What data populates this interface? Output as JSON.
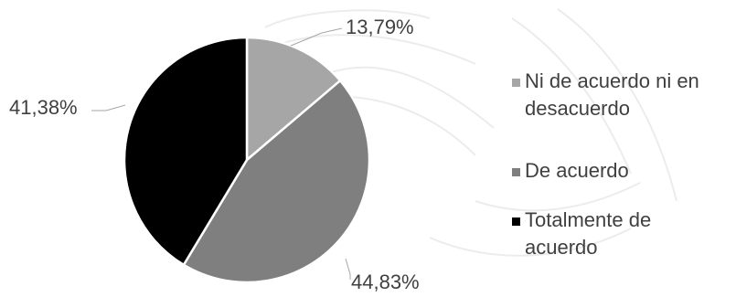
{
  "chart_data": {
    "type": "pie",
    "start_angle_deg": 0,
    "direction": "clockwise",
    "slices": [
      {
        "label": "Ni de acuerdo ni en desacuerdo",
        "value": 13.79,
        "display": "13,79%",
        "color": "#a6a6a6"
      },
      {
        "label": "De acuerdo",
        "value": 44.83,
        "display": "44,83%",
        "color": "#7f7f7f"
      },
      {
        "label": "Totalmente de acuerdo",
        "value": 41.38,
        "display": "41,38%",
        "color": "#000000"
      }
    ],
    "legend": {
      "position": "right",
      "entries": [
        {
          "lines": [
            "Ni de acuerdo ni en",
            "desacuerdo"
          ],
          "color": "#a6a6a6"
        },
        {
          "lines": [
            "De acuerdo"
          ],
          "color": "#7f7f7f"
        },
        {
          "lines": [
            "Totalmente de",
            "acuerdo"
          ],
          "color": "#000000"
        }
      ]
    }
  }
}
